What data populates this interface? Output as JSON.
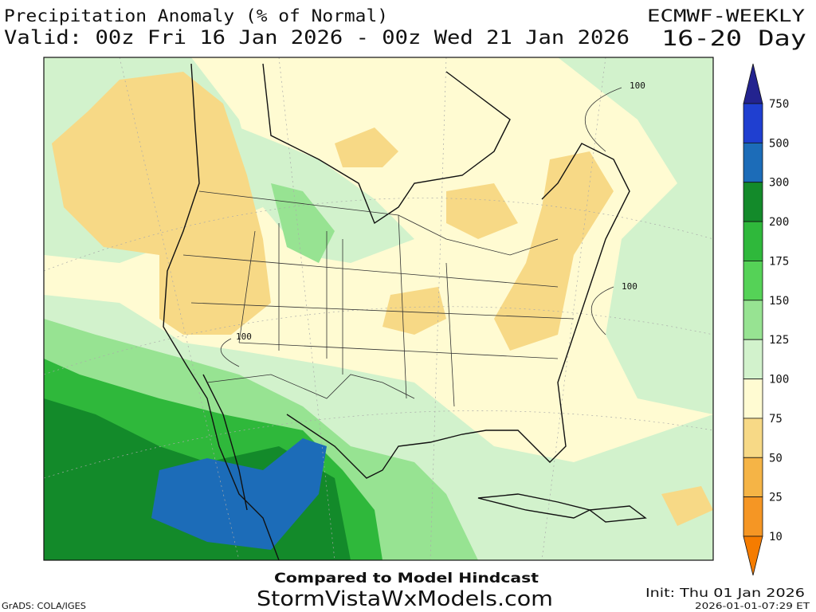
{
  "header": {
    "title": "Precipitation Anomaly (% of Normal)",
    "valid": "Valid: 00z Fri 16 Jan 2026 - 00z Wed 21 Jan 2026",
    "model": "ECMWF-WEEKLY",
    "period": "16-20 Day"
  },
  "legend": {
    "labels": [
      "750",
      "500",
      "300",
      "200",
      "175",
      "150",
      "125",
      "100",
      "75",
      "50",
      "25",
      "10"
    ],
    "colors": [
      "#23238f",
      "#1f3fd0",
      "#1c6cb8",
      "#138a2a",
      "#2fb83b",
      "#55d257",
      "#97e392",
      "#d2f2cc",
      "#fffbd2",
      "#f7d986",
      "#f5b446",
      "#f59624",
      "#f57c00"
    ]
  },
  "map": {
    "contour_labels": [
      "100",
      "100",
      "100"
    ]
  },
  "footer": {
    "compared": "Compared to Model Hindcast",
    "site": "StormVistaWxModels.com",
    "grads": "GrADS: COLA/IGES",
    "init": "Init: Thu 01 Jan 2026",
    "timestamp": "2026-01-01-07:29 ET"
  }
}
